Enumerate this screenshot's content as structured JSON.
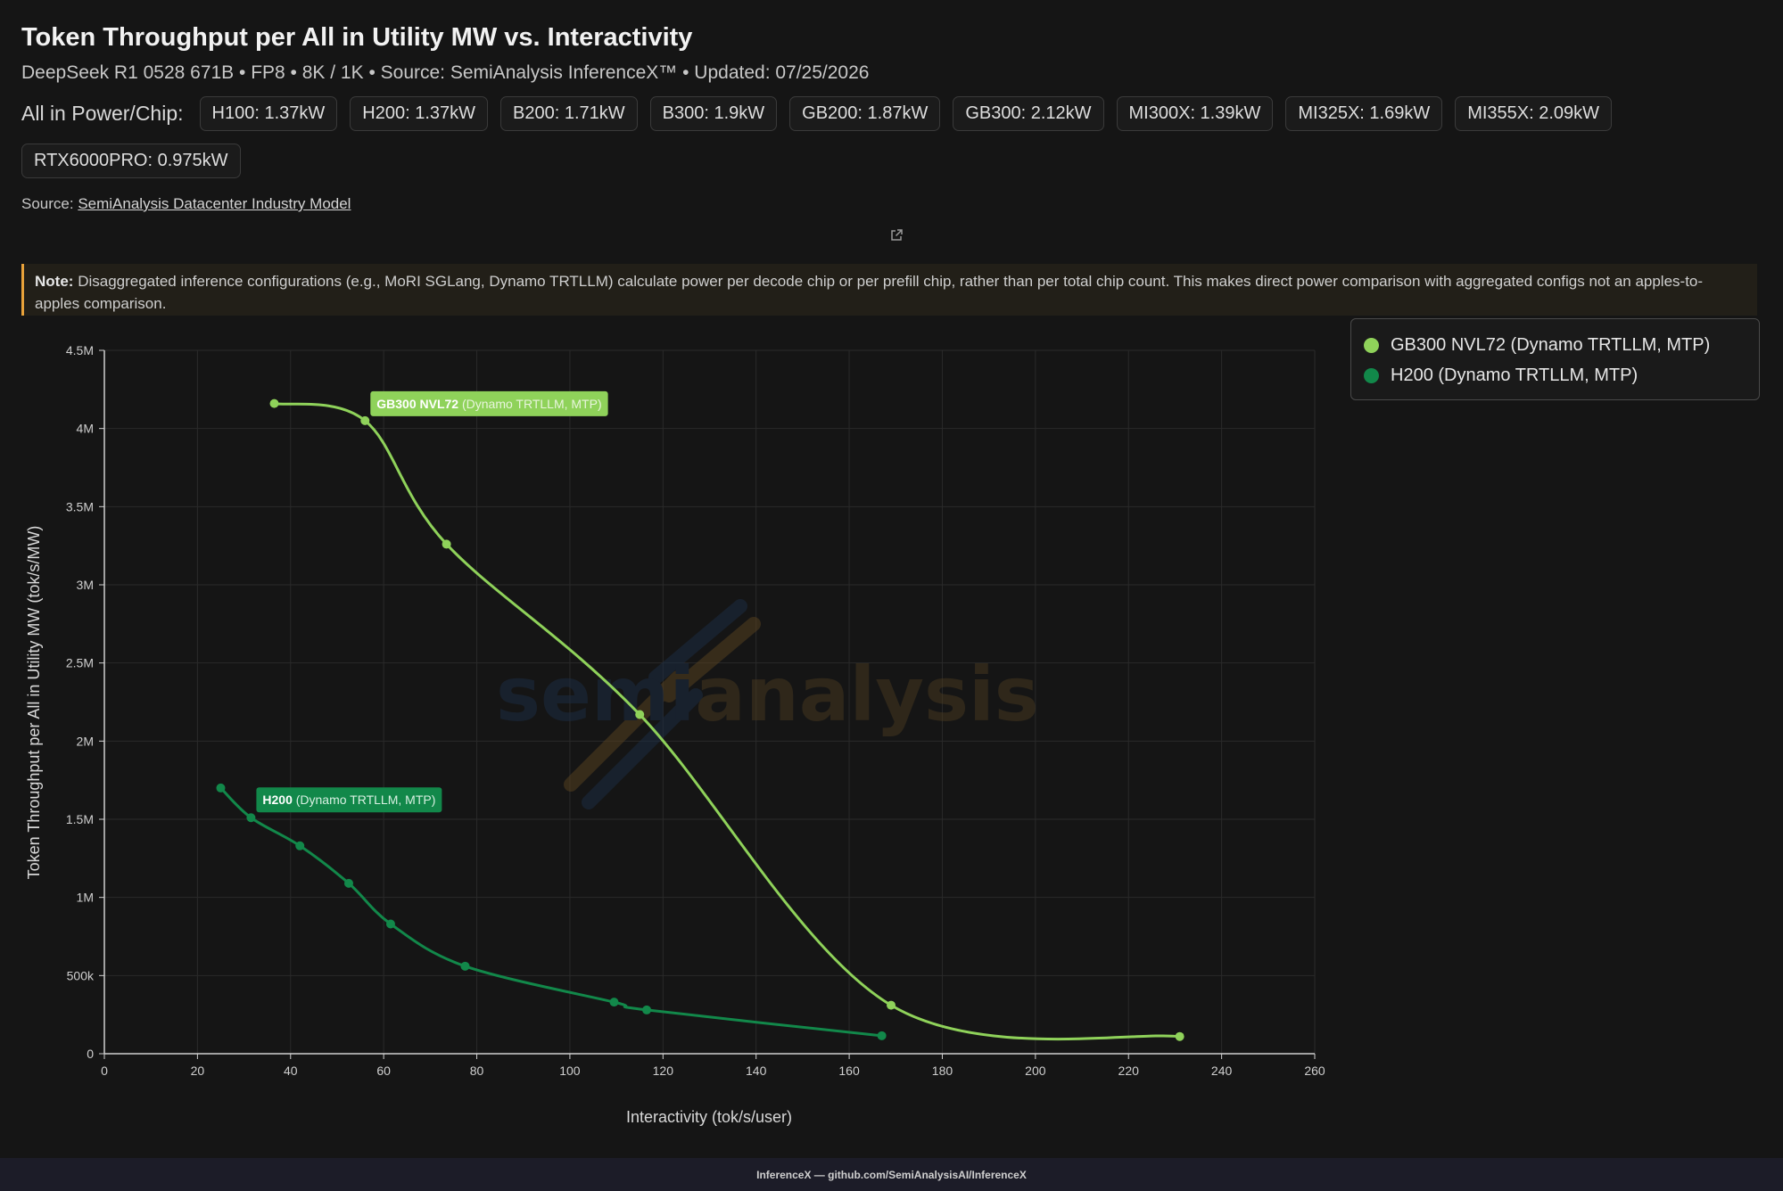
{
  "header": {
    "title": "Token Throughput per All in Utility MW vs. Interactivity",
    "subtitle": "DeepSeek R1 0528 671B • FP8 • 8K / 1K • Source: SemiAnalysis InferenceX™ • Updated: 07/25/2026"
  },
  "power": {
    "label": "All in Power/Chip:",
    "chips": [
      "H100: 1.37kW",
      "H200: 1.37kW",
      "B200: 1.71kW",
      "B300: 1.9kW",
      "GB200: 1.87kW",
      "GB300: 2.12kW",
      "MI300X: 1.39kW",
      "MI325X: 1.69kW",
      "MI355X: 2.09kW",
      "RTX6000PRO: 0.975kW"
    ]
  },
  "source": {
    "prefix": "Source:",
    "link_text": "SemiAnalysis Datacenter Industry Model"
  },
  "note": {
    "label": "Note:",
    "text": "Disaggregated inference configurations (e.g., MoRI SGLang, Dynamo TRTLLM) calculate power per decode chip or per prefill chip, rather than per total chip count. This makes direct power comparison with aggregated configs not an apples-to-apples comparison."
  },
  "watermark": {
    "text_a": "semi",
    "text_b": "analysis"
  },
  "footer": {
    "text": "InferenceX — github.com/SemiAnalysisAI/InferenceX"
  },
  "icons": {
    "external_link": "external-link-icon"
  },
  "colors": {
    "gb300": "#8fd25a",
    "h200": "#12884a",
    "note_accent": "#e8a23a"
  },
  "chart_data": {
    "type": "line",
    "xlabel": "Interactivity (tok/s/user)",
    "ylabel": "Token Throughput per All in Utility MW (tok/s/MW)",
    "xlim": [
      0,
      260
    ],
    "ylim": [
      0,
      4500000
    ],
    "x_ticks": [
      0,
      20,
      40,
      60,
      80,
      100,
      120,
      140,
      160,
      180,
      200,
      220,
      240,
      260
    ],
    "x_tick_labels": [
      "0",
      "20",
      "40",
      "60",
      "80",
      "100",
      "120",
      "140",
      "160",
      "180",
      "200",
      "220",
      "240",
      "260"
    ],
    "y_ticks": [
      0,
      500000,
      1000000,
      1500000,
      2000000,
      2500000,
      3000000,
      3500000,
      4000000,
      4500000
    ],
    "y_tick_labels": [
      "0",
      "500k",
      "1M",
      "1.5M",
      "2M",
      "2.5M",
      "3M",
      "3.5M",
      "4M",
      "4.5M"
    ],
    "grid": true,
    "legend_position": "top-right",
    "series": [
      {
        "name": "GB300 NVL72 (Dynamo TRTLLM, MTP)",
        "label_bold": "GB300 NVL72",
        "label_rest": "(Dynamo TRTLLM, MTP)",
        "color": "#8fd25a",
        "points": [
          [
            36.5,
            4160000
          ],
          [
            56,
            4050000
          ],
          [
            73.5,
            3260000
          ],
          [
            115,
            2170000
          ],
          [
            169,
            310000
          ],
          [
            231,
            110000
          ]
        ]
      },
      {
        "name": "H200 (Dynamo TRTLLM, MTP)",
        "label_bold": "H200",
        "label_rest": "(Dynamo TRTLLM, MTP)",
        "color": "#12884a",
        "points": [
          [
            25,
            1700000
          ],
          [
            31.5,
            1510000
          ],
          [
            42,
            1330000
          ],
          [
            52.5,
            1090000
          ],
          [
            61.5,
            830000
          ],
          [
            77.5,
            560000
          ],
          [
            109.5,
            330000
          ],
          [
            116.5,
            280000
          ],
          [
            167,
            115000
          ]
        ]
      }
    ]
  }
}
